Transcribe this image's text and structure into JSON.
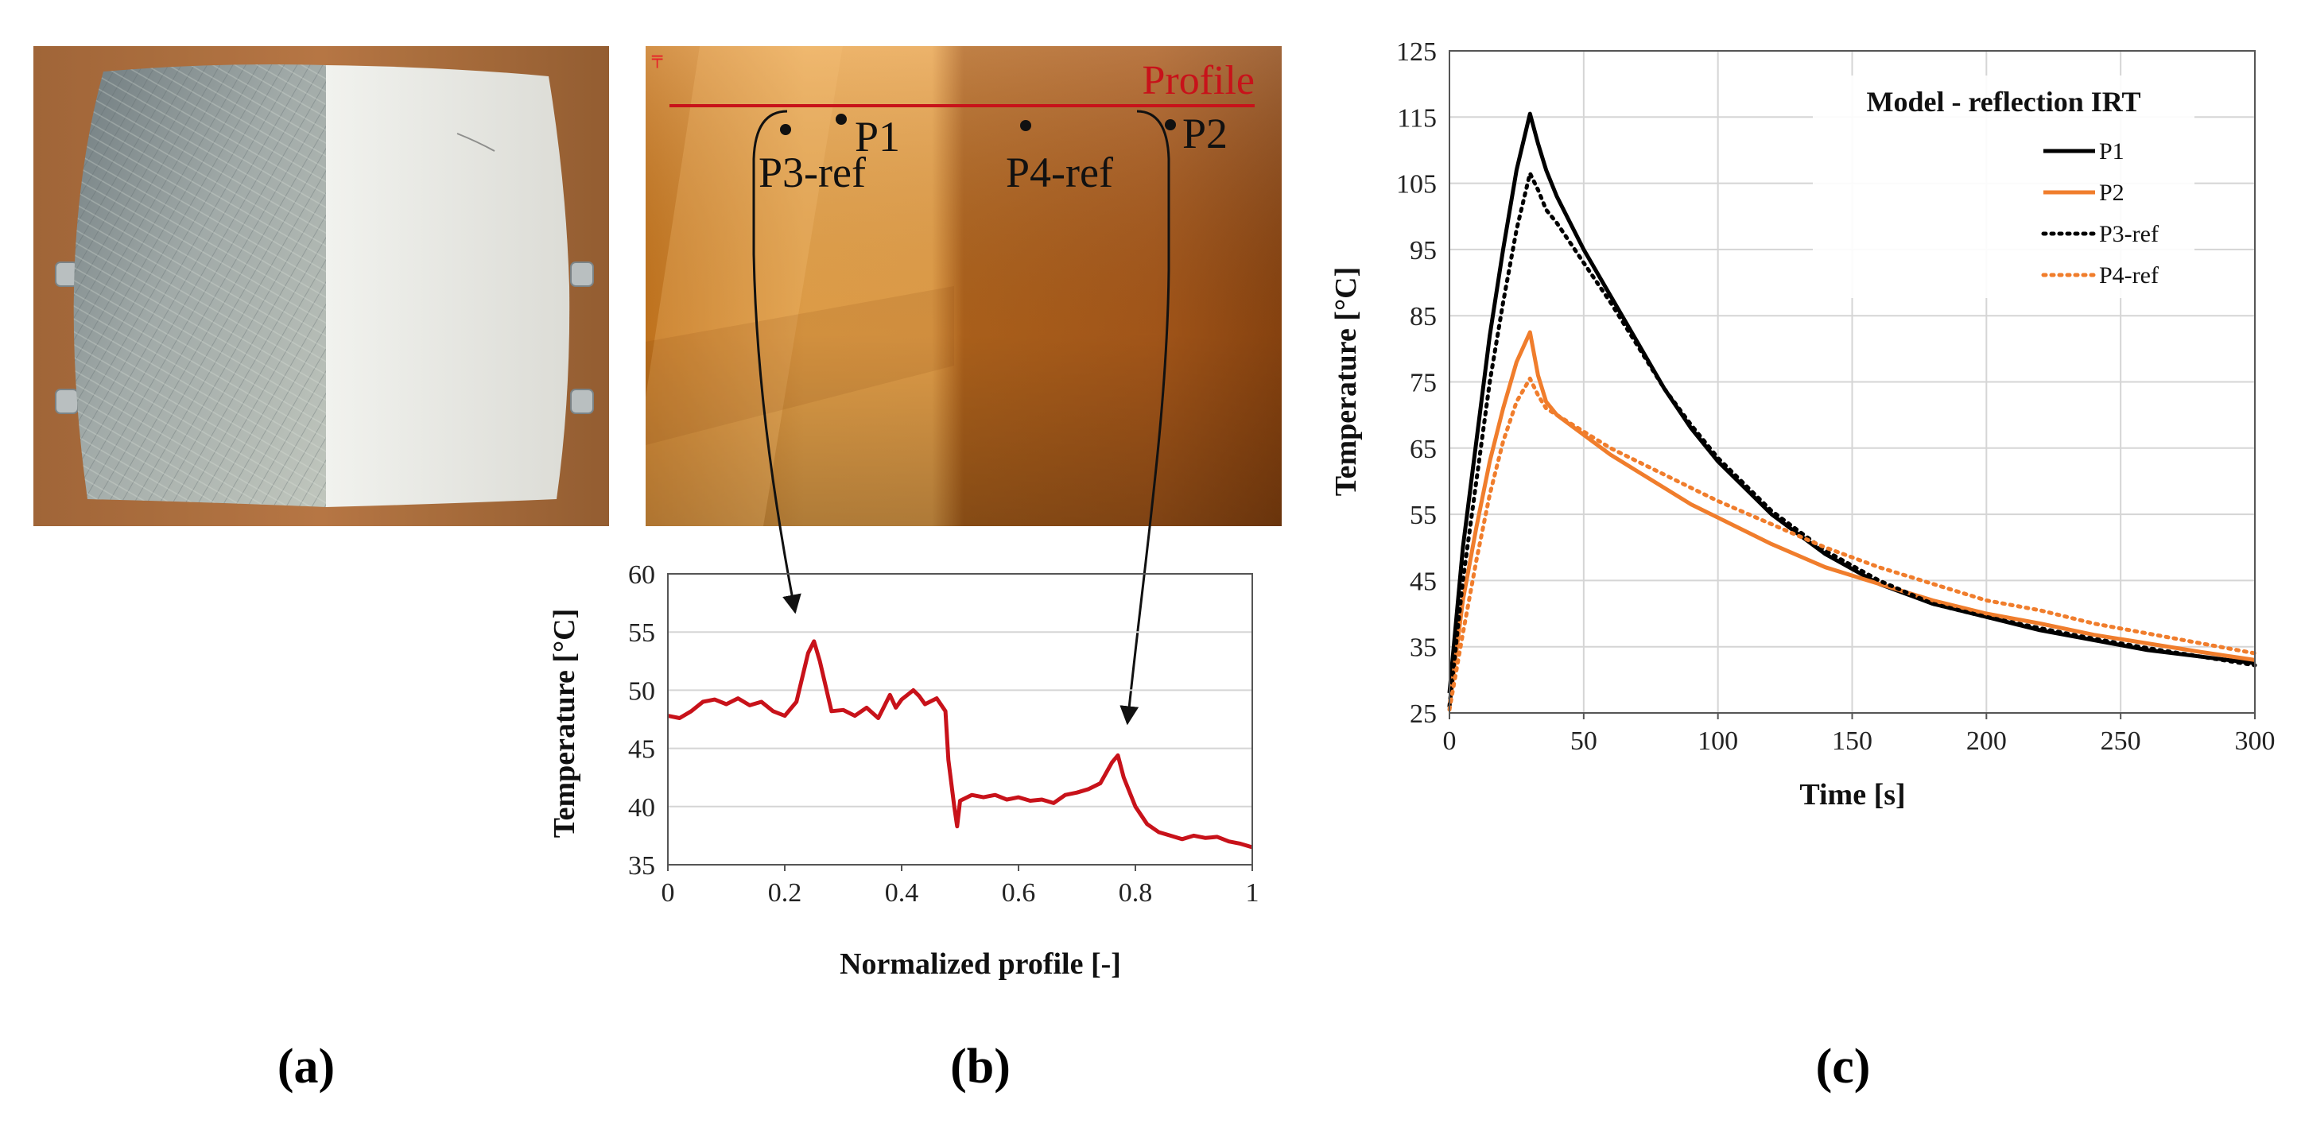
{
  "captions": {
    "a": "(a)",
    "b": "(b)",
    "c": "(c)"
  },
  "thermogram": {
    "profile_label": "Profile",
    "points": [
      {
        "name": "P1",
        "label": "P1"
      },
      {
        "name": "P2",
        "label": "P2"
      },
      {
        "name": "P3-ref",
        "label": "P3-ref"
      },
      {
        "name": "P4-ref",
        "label": "P4-ref"
      }
    ],
    "profile_color": "#c8121a"
  },
  "colors": {
    "profile": "#c8121a",
    "p1": "#000000",
    "p2": "#f07d2c",
    "p3": "#000000",
    "p4": "#f07d2c"
  },
  "chart_data": [
    {
      "id": "profile",
      "type": "line",
      "xlabel": "Normalized profile [-]",
      "ylabel": "Temperature [°C]",
      "xlim": [
        0,
        1
      ],
      "ylim": [
        35,
        60
      ],
      "xticks": [
        0,
        0.2,
        0.4,
        0.6,
        0.8,
        1
      ],
      "xtick_labels": [
        "0",
        "0.2",
        "0.4",
        "0.6",
        "0.8",
        "1"
      ],
      "yticks": [
        35,
        40,
        45,
        50,
        55,
        60
      ],
      "grid": true,
      "series": [
        {
          "color": "#c8121a",
          "x": [
            0,
            0.02,
            0.04,
            0.06,
            0.08,
            0.1,
            0.12,
            0.14,
            0.16,
            0.18,
            0.2,
            0.22,
            0.24,
            0.25,
            0.26,
            0.28,
            0.3,
            0.32,
            0.34,
            0.36,
            0.38,
            0.39,
            0.4,
            0.42,
            0.43,
            0.44,
            0.46,
            0.475,
            0.48,
            0.49,
            0.495,
            0.5,
            0.52,
            0.54,
            0.56,
            0.58,
            0.6,
            0.62,
            0.64,
            0.66,
            0.68,
            0.7,
            0.72,
            0.74,
            0.76,
            0.77,
            0.78,
            0.8,
            0.82,
            0.84,
            0.86,
            0.88,
            0.9,
            0.92,
            0.94,
            0.96,
            0.98,
            1.0
          ],
          "y": [
            47.8,
            47.6,
            48.2,
            49.0,
            49.2,
            48.8,
            49.3,
            48.7,
            49.0,
            48.2,
            47.8,
            49.0,
            53.2,
            54.2,
            52.5,
            48.2,
            48.3,
            47.8,
            48.5,
            47.6,
            49.6,
            48.5,
            49.2,
            50.0,
            49.5,
            48.8,
            49.3,
            48.2,
            44.0,
            40.0,
            38.3,
            40.5,
            41.0,
            40.8,
            41.0,
            40.6,
            40.8,
            40.5,
            40.6,
            40.3,
            41.0,
            41.2,
            41.5,
            42.0,
            43.8,
            44.4,
            42.5,
            40.0,
            38.5,
            37.8,
            37.5,
            37.2,
            37.5,
            37.3,
            37.4,
            37.0,
            36.8,
            36.5
          ]
        }
      ]
    },
    {
      "id": "model",
      "type": "line",
      "title": "Model - reflection IRT",
      "xlabel": "Time [s]",
      "ylabel": "Temperature [°C]",
      "xlim": [
        0,
        300
      ],
      "ylim": [
        25,
        125
      ],
      "xticks": [
        0,
        50,
        100,
        150,
        200,
        250,
        300
      ],
      "yticks": [
        25,
        35,
        45,
        55,
        65,
        75,
        85,
        95,
        105,
        115,
        125
      ],
      "grid": true,
      "legend": "top-right",
      "series": [
        {
          "name": "P1",
          "color": "#000000",
          "dash": "solid",
          "x": [
            0,
            5,
            10,
            15,
            20,
            25,
            30,
            33,
            36,
            40,
            50,
            60,
            70,
            80,
            90,
            100,
            120,
            140,
            160,
            180,
            200,
            220,
            240,
            260,
            280,
            300
          ],
          "y": [
            28,
            50,
            66,
            82,
            95,
            107,
            115.5,
            111,
            107,
            103,
            95,
            88,
            81,
            74,
            68,
            63,
            55,
            49,
            44.5,
            41.5,
            39.5,
            37.5,
            36,
            34.5,
            33.5,
            32.5
          ]
        },
        {
          "name": "P2",
          "color": "#f07d2c",
          "dash": "solid",
          "x": [
            0,
            5,
            10,
            15,
            20,
            25,
            30,
            33,
            36,
            40,
            50,
            60,
            70,
            80,
            90,
            100,
            120,
            140,
            160,
            180,
            200,
            220,
            240,
            260,
            280,
            300
          ],
          "y": [
            26,
            42,
            53,
            63,
            71,
            78,
            82.5,
            76,
            72,
            70,
            67,
            64,
            61.5,
            59,
            56.5,
            54.5,
            50.5,
            47,
            44.5,
            42,
            40,
            38.5,
            36.8,
            35.5,
            34.2,
            33
          ]
        },
        {
          "name": "P3-ref",
          "color": "#000000",
          "dash": "dotted",
          "x": [
            0,
            5,
            10,
            15,
            20,
            25,
            30,
            33,
            36,
            40,
            50,
            60,
            70,
            80,
            90,
            100,
            120,
            140,
            160,
            180,
            200,
            220,
            240,
            260,
            280,
            300
          ],
          "y": [
            26,
            45,
            60,
            75,
            87,
            98,
            106.5,
            104,
            101,
            99,
            93,
            87,
            80.5,
            74,
            68.5,
            63.5,
            55.5,
            49.5,
            45,
            41.5,
            39.5,
            37.8,
            36.2,
            34.8,
            33.5,
            32.2
          ]
        },
        {
          "name": "P4-ref",
          "color": "#f07d2c",
          "dash": "dotted",
          "x": [
            0,
            5,
            10,
            15,
            20,
            25,
            30,
            33,
            36,
            40,
            50,
            60,
            70,
            80,
            90,
            100,
            120,
            140,
            160,
            180,
            200,
            220,
            240,
            260,
            280,
            300
          ],
          "y": [
            25.5,
            37,
            48,
            58,
            66,
            72,
            75.5,
            73,
            71,
            70,
            67.5,
            65,
            63,
            61,
            59,
            57,
            53.5,
            50,
            47,
            44.5,
            42,
            40.5,
            38.5,
            37,
            35.5,
            34
          ]
        }
      ]
    }
  ]
}
